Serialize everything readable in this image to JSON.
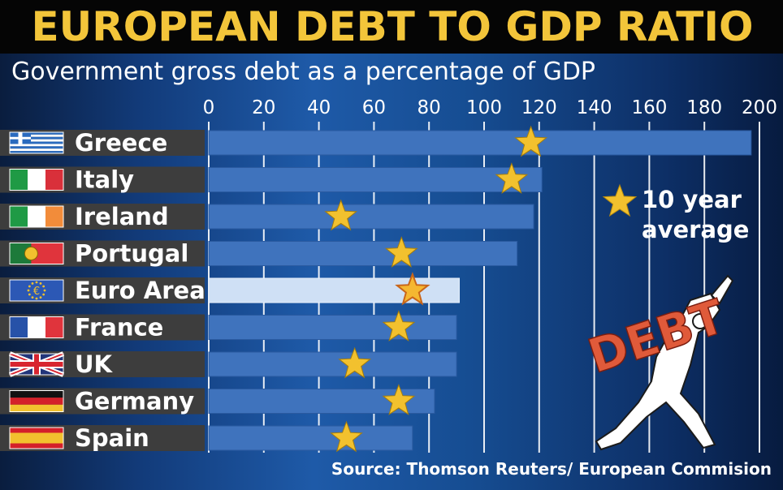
{
  "header": {
    "title": "EUROPEAN DEBT TO GDP RATIO",
    "subtitle": "Government gross debt as a percentage of GDP",
    "source": "Source: Thomson Reuters/ European Commision"
  },
  "legend": {
    "label_line1": "10 year",
    "label_line2": "average"
  },
  "illustration": {
    "word": "DEBT"
  },
  "colors": {
    "title": "#f3c53a",
    "bar": "#3f73bd",
    "bar_highlight": "#cfe0f5",
    "star": "#f2c12e",
    "label_box": "#3d3d3d",
    "debt_word": "#e05a3a"
  },
  "chart_data": {
    "type": "bar",
    "orientation": "horizontal",
    "categories": [
      "Greece",
      "Italy",
      "Ireland",
      "Portugal",
      "Euro Area",
      "France",
      "UK",
      "Germany",
      "Spain"
    ],
    "flags": [
      "greece-flag",
      "italy-flag",
      "ireland-flag",
      "portugal-flag",
      "eu-flag",
      "france-flag",
      "uk-flag",
      "germany-flag",
      "spain-flag"
    ],
    "xlim": [
      0,
      200
    ],
    "xticks": [
      0,
      20,
      40,
      60,
      80,
      100,
      120,
      140,
      160,
      180,
      200
    ],
    "grid": true,
    "highlight": "Euro Area",
    "series": [
      {
        "values": [
          197,
          121,
          118,
          112,
          91,
          90,
          90,
          82,
          74
        ]
      },
      {
        "name": "10 year average",
        "marker": "star",
        "values": [
          117,
          110,
          48,
          70,
          74,
          69,
          53,
          69,
          50
        ]
      }
    ]
  }
}
